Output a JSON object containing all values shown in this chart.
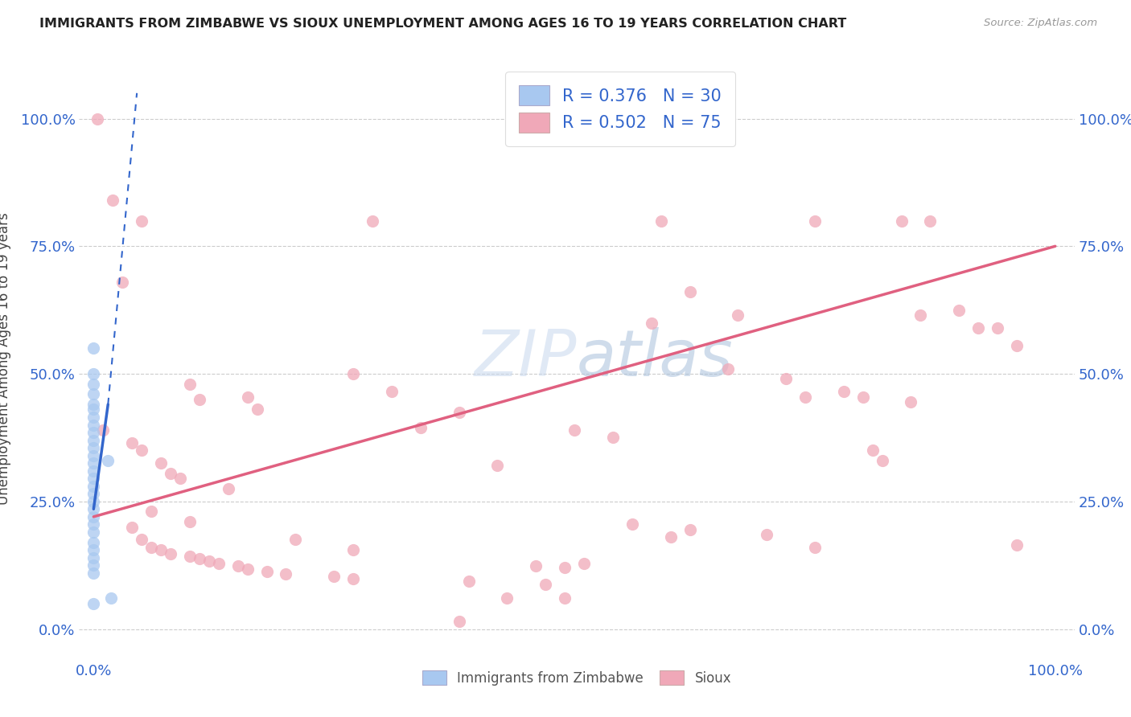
{
  "title": "IMMIGRANTS FROM ZIMBABWE VS SIOUX UNEMPLOYMENT AMONG AGES 16 TO 19 YEARS CORRELATION CHART",
  "source": "Source: ZipAtlas.com",
  "xlabel_blue": "Immigrants from Zimbabwe",
  "xlabel_pink": "Sioux",
  "ylabel": "Unemployment Among Ages 16 to 19 years",
  "watermark_zip": "ZIP",
  "watermark_atlas": "atlas",
  "legend_blue_R": "R = 0.376",
  "legend_blue_N": "N = 30",
  "legend_pink_R": "R = 0.502",
  "legend_pink_N": "N = 75",
  "blue_color": "#a8c8f0",
  "pink_color": "#f0a8b8",
  "blue_line_color": "#3366cc",
  "pink_line_color": "#e06080",
  "tick_color": "#3366cc",
  "title_color": "#222222",
  "ylabel_color": "#444444",
  "blue_scatter": [
    [
      0.0,
      0.55
    ],
    [
      0.0,
      0.5
    ],
    [
      0.0,
      0.48
    ],
    [
      0.0,
      0.46
    ],
    [
      0.0,
      0.44
    ],
    [
      0.0,
      0.43
    ],
    [
      0.0,
      0.415
    ],
    [
      0.0,
      0.4
    ],
    [
      0.0,
      0.385
    ],
    [
      0.0,
      0.37
    ],
    [
      0.0,
      0.355
    ],
    [
      0.0,
      0.34
    ],
    [
      0.0,
      0.325
    ],
    [
      0.0,
      0.31
    ],
    [
      0.0,
      0.295
    ],
    [
      0.0,
      0.28
    ],
    [
      0.0,
      0.265
    ],
    [
      0.0,
      0.25
    ],
    [
      0.0,
      0.235
    ],
    [
      0.0,
      0.22
    ],
    [
      0.0,
      0.205
    ],
    [
      0.0,
      0.19
    ],
    [
      0.0,
      0.17
    ],
    [
      0.0,
      0.155
    ],
    [
      0.0,
      0.14
    ],
    [
      0.0,
      0.125
    ],
    [
      0.0,
      0.11
    ],
    [
      0.0,
      0.05
    ],
    [
      0.015,
      0.33
    ],
    [
      0.018,
      0.06
    ]
  ],
  "pink_scatter": [
    [
      0.004,
      1.0
    ],
    [
      0.02,
      0.84
    ],
    [
      0.05,
      0.8
    ],
    [
      0.29,
      0.8
    ],
    [
      0.59,
      0.8
    ],
    [
      0.75,
      0.8
    ],
    [
      0.84,
      0.8
    ],
    [
      0.87,
      0.8
    ],
    [
      0.03,
      0.68
    ],
    [
      0.1,
      0.48
    ],
    [
      0.11,
      0.45
    ],
    [
      0.27,
      0.5
    ],
    [
      0.31,
      0.465
    ],
    [
      0.01,
      0.39
    ],
    [
      0.04,
      0.365
    ],
    [
      0.05,
      0.35
    ],
    [
      0.07,
      0.325
    ],
    [
      0.08,
      0.305
    ],
    [
      0.09,
      0.295
    ],
    [
      0.14,
      0.275
    ],
    [
      0.16,
      0.455
    ],
    [
      0.17,
      0.43
    ],
    [
      0.34,
      0.395
    ],
    [
      0.38,
      0.425
    ],
    [
      0.42,
      0.32
    ],
    [
      0.5,
      0.39
    ],
    [
      0.54,
      0.375
    ],
    [
      0.58,
      0.6
    ],
    [
      0.62,
      0.66
    ],
    [
      0.66,
      0.51
    ],
    [
      0.67,
      0.615
    ],
    [
      0.72,
      0.49
    ],
    [
      0.74,
      0.455
    ],
    [
      0.78,
      0.465
    ],
    [
      0.8,
      0.455
    ],
    [
      0.85,
      0.445
    ],
    [
      0.86,
      0.615
    ],
    [
      0.9,
      0.625
    ],
    [
      0.92,
      0.59
    ],
    [
      0.94,
      0.59
    ],
    [
      0.96,
      0.555
    ],
    [
      0.05,
      0.175
    ],
    [
      0.06,
      0.16
    ],
    [
      0.07,
      0.155
    ],
    [
      0.08,
      0.148
    ],
    [
      0.1,
      0.142
    ],
    [
      0.11,
      0.138
    ],
    [
      0.12,
      0.133
    ],
    [
      0.13,
      0.128
    ],
    [
      0.15,
      0.123
    ],
    [
      0.16,
      0.118
    ],
    [
      0.18,
      0.113
    ],
    [
      0.2,
      0.108
    ],
    [
      0.25,
      0.103
    ],
    [
      0.27,
      0.098
    ],
    [
      0.39,
      0.093
    ],
    [
      0.47,
      0.088
    ],
    [
      0.46,
      0.123
    ],
    [
      0.49,
      0.12
    ],
    [
      0.51,
      0.128
    ],
    [
      0.56,
      0.205
    ],
    [
      0.6,
      0.18
    ],
    [
      0.62,
      0.195
    ],
    [
      0.7,
      0.185
    ],
    [
      0.75,
      0.16
    ],
    [
      0.81,
      0.35
    ],
    [
      0.82,
      0.33
    ],
    [
      0.96,
      0.165
    ],
    [
      0.43,
      0.06
    ],
    [
      0.49,
      0.06
    ],
    [
      0.38,
      0.015
    ],
    [
      0.04,
      0.2
    ],
    [
      0.06,
      0.23
    ],
    [
      0.1,
      0.21
    ],
    [
      0.21,
      0.175
    ],
    [
      0.27,
      0.155
    ]
  ],
  "blue_trendline_solid": [
    [
      0.0,
      0.235
    ],
    [
      0.015,
      0.44
    ]
  ],
  "blue_trendline_dash": [
    [
      0.015,
      0.44
    ],
    [
      0.045,
      1.05
    ]
  ],
  "pink_trendline": [
    [
      0.0,
      0.22
    ],
    [
      1.0,
      0.75
    ]
  ],
  "ygrid": [
    0.0,
    0.25,
    0.5,
    0.75,
    1.0
  ],
  "xlim": [
    -0.015,
    1.02
  ],
  "ylim": [
    -0.06,
    1.12
  ],
  "xtick_vals": [
    0.0,
    1.0
  ],
  "xtick_labels": [
    "0.0%",
    "100.0%"
  ],
  "ytick_vals": [
    0.0,
    0.25,
    0.5,
    0.75,
    1.0
  ],
  "ytick_labels": [
    "0.0%",
    "25.0%",
    "50.0%",
    "75.0%",
    "100.0%"
  ]
}
